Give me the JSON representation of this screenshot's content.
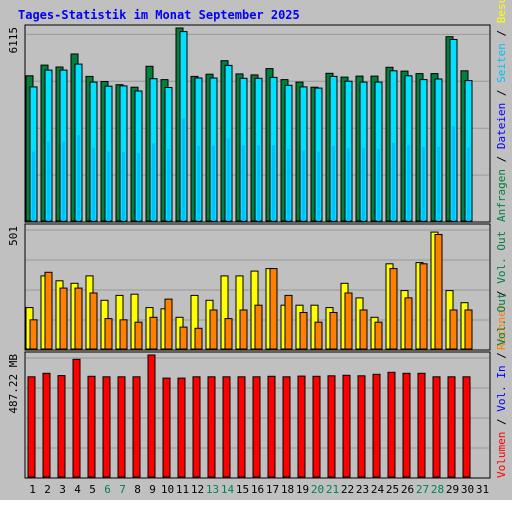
{
  "title": "Tages-Statistik im Monat September 2025",
  "colors": {
    "background": "#C0C0C0",
    "border": "#000000",
    "grid": "#999999",
    "title": "#0000FF",
    "hits": "#008040",
    "files": "#00E0FF",
    "pages": "#00C0FF",
    "visits": "#FFFF00",
    "hosts": "#FF8000",
    "volume": "#FF0000",
    "in_out": "#0000FF",
    "weekend_day": "#00805C",
    "weekday": "#000080"
  },
  "chart_data": [
    {
      "type": "bar",
      "panel": "top",
      "categories": [
        "1",
        "2",
        "3",
        "4",
        "5",
        "6",
        "7",
        "8",
        "9",
        "10",
        "11",
        "12",
        "13",
        "14",
        "15",
        "16",
        "17",
        "18",
        "19",
        "20",
        "21",
        "22",
        "23",
        "24",
        "25",
        "26",
        "27",
        "28",
        "29",
        "30",
        "31"
      ],
      "y_axis_max_label": "6115",
      "ylim": [
        0,
        6115
      ],
      "series": [
        {
          "name": "Anfragen",
          "color": "#008040",
          "values": [
            4600,
            4940,
            4880,
            5290,
            4580,
            4420,
            4320,
            4240,
            4900,
            4480,
            6115,
            4580,
            4650,
            5080,
            4660,
            4630,
            4830,
            4480,
            4400,
            4240,
            4680,
            4560,
            4590,
            4590,
            4870,
            4750,
            4670,
            4670,
            5840,
            4760,
            null
          ]
        },
        {
          "name": "Dateien",
          "color": "#00E0FF",
          "values": [
            4250,
            4780,
            4780,
            4970,
            4400,
            4270,
            4280,
            4120,
            4510,
            4230,
            6000,
            4530,
            4530,
            4930,
            4520,
            4520,
            4550,
            4300,
            4250,
            4210,
            4580,
            4430,
            4400,
            4400,
            4760,
            4600,
            4480,
            4500,
            5750,
            4450,
            null
          ]
        },
        {
          "name": "Seiten",
          "color": "#00C0FF",
          "values": [
            2200,
            2520,
            2520,
            2720,
            2320,
            2200,
            2190,
            2150,
            2460,
            2280,
            3250,
            2380,
            2380,
            2610,
            2400,
            2400,
            2400,
            2280,
            2230,
            2200,
            2380,
            2300,
            2300,
            2280,
            2480,
            2400,
            2340,
            2350,
            3010,
            2330,
            null
          ]
        }
      ],
      "grid": true
    },
    {
      "type": "bar",
      "panel": "middle",
      "categories": [
        "1",
        "2",
        "3",
        "4",
        "5",
        "6",
        "7",
        "8",
        "9",
        "10",
        "11",
        "12",
        "13",
        "14",
        "15",
        "16",
        "17",
        "18",
        "19",
        "20",
        "21",
        "22",
        "23",
        "24",
        "25",
        "26",
        "27",
        "28",
        "29",
        "30",
        "31"
      ],
      "y_axis_max_label": "501",
      "ylim": [
        0,
        501
      ],
      "series": [
        {
          "name": "Besuche",
          "color": "#FFFF00",
          "values": [
            170,
            300,
            280,
            270,
            300,
            200,
            220,
            225,
            170,
            165,
            130,
            220,
            200,
            300,
            300,
            320,
            330,
            180,
            180,
            180,
            170,
            270,
            210,
            130,
            350,
            240,
            355,
            480,
            240,
            190,
            null
          ]
        },
        {
          "name": "Rechner",
          "color": "#FF8000",
          "values": [
            120,
            315,
            250,
            250,
            230,
            125,
            120,
            110,
            130,
            205,
            90,
            85,
            160,
            125,
            160,
            180,
            330,
            220,
            150,
            110,
            150,
            230,
            160,
            110,
            330,
            210,
            350,
            470,
            160,
            160,
            null
          ]
        }
      ],
      "grid": true
    },
    {
      "type": "bar",
      "panel": "bottom",
      "categories": [
        "1",
        "2",
        "3",
        "4",
        "5",
        "6",
        "7",
        "8",
        "9",
        "10",
        "11",
        "12",
        "13",
        "14",
        "15",
        "16",
        "17",
        "18",
        "19",
        "20",
        "21",
        "22",
        "23",
        "24",
        "25",
        "26",
        "27",
        "28",
        "29",
        "30",
        "31"
      ],
      "y_axis_max_label": "487.22 MB",
      "ylim": [
        0,
        487.22
      ],
      "series": [
        {
          "name": "Volumen",
          "color": "#FF0000",
          "values": [
            400,
            414,
            405,
            470,
            402,
            400,
            400,
            400,
            487.22,
            395,
            395,
            400,
            400,
            400,
            400,
            400,
            402,
            400,
            403,
            402,
            404,
            406,
            404,
            410,
            418,
            414,
            414,
            400,
            400,
            400,
            null
          ]
        }
      ],
      "grid": true
    }
  ],
  "x_labels": [
    {
      "day": "1",
      "weekend": false
    },
    {
      "day": "2",
      "weekend": false
    },
    {
      "day": "3",
      "weekend": false
    },
    {
      "day": "4",
      "weekend": false
    },
    {
      "day": "5",
      "weekend": false
    },
    {
      "day": "6",
      "weekend": true
    },
    {
      "day": "7",
      "weekend": true
    },
    {
      "day": "8",
      "weekend": false
    },
    {
      "day": "9",
      "weekend": false
    },
    {
      "day": "10",
      "weekend": false
    },
    {
      "day": "11",
      "weekend": false
    },
    {
      "day": "12",
      "weekend": false
    },
    {
      "day": "13",
      "weekend": true
    },
    {
      "day": "14",
      "weekend": true
    },
    {
      "day": "15",
      "weekend": false
    },
    {
      "day": "16",
      "weekend": false
    },
    {
      "day": "17",
      "weekend": false
    },
    {
      "day": "18",
      "weekend": false
    },
    {
      "day": "19",
      "weekend": false
    },
    {
      "day": "20",
      "weekend": true
    },
    {
      "day": "21",
      "weekend": true
    },
    {
      "day": "22",
      "weekend": false
    },
    {
      "day": "23",
      "weekend": false
    },
    {
      "day": "24",
      "weekend": false
    },
    {
      "day": "25",
      "weekend": false
    },
    {
      "day": "26",
      "weekend": false
    },
    {
      "day": "27",
      "weekend": true
    },
    {
      "day": "28",
      "weekend": true
    },
    {
      "day": "29",
      "weekend": false
    },
    {
      "day": "30",
      "weekend": false
    },
    {
      "day": "31",
      "weekend": false
    }
  ],
  "right_labels": {
    "top": [
      {
        "text": "Anfragen",
        "color": "#008040"
      },
      {
        "text": " / ",
        "color": "#000000"
      },
      {
        "text": "Dateien",
        "color": "#0000FF"
      },
      {
        "text": " / ",
        "color": "#000000"
      },
      {
        "text": "Seiten",
        "color": "#00C0FF"
      },
      {
        "text": " / ",
        "color": "#000000"
      },
      {
        "text": "Besuche",
        "color": "#FFFF00"
      }
    ],
    "middle": [
      {
        "text": "Rechner",
        "color": "#FF8000"
      },
      {
        "text": " / ",
        "color": "#000000"
      },
      {
        "text": "Vol. Out",
        "color": "#008040"
      }
    ],
    "bottom": [
      {
        "text": "Volumen",
        "color": "#FF0000"
      },
      {
        "text": " / ",
        "color": "#000000"
      },
      {
        "text": "Vol. In",
        "color": "#0000FF"
      },
      {
        "text": " / ",
        "color": "#000000"
      },
      {
        "text": "Vol. Out",
        "color": "#008040"
      }
    ]
  }
}
